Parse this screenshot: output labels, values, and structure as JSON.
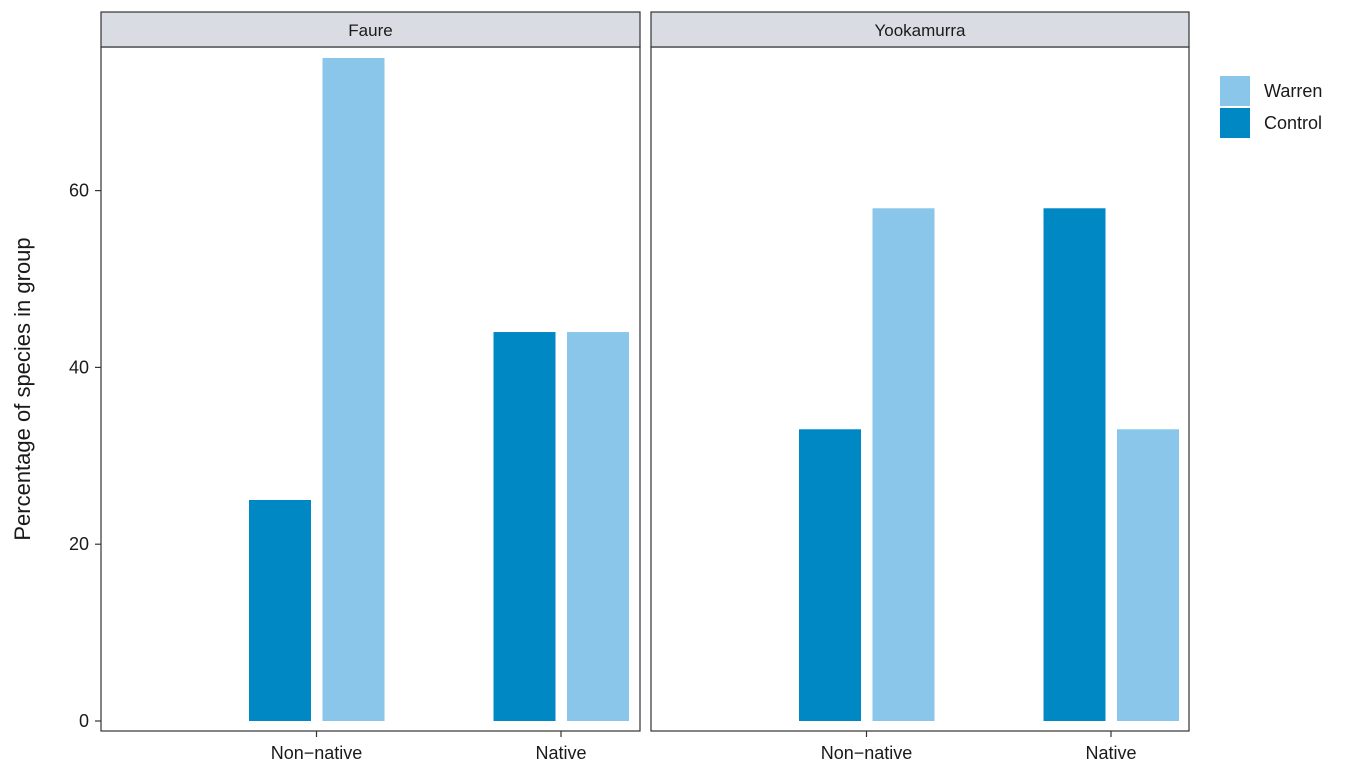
{
  "chart_data": {
    "type": "bar",
    "facets": [
      {
        "title": "Faure",
        "categories": [
          "Non−native",
          "Native"
        ],
        "series": [
          {
            "name": "Control",
            "values": [
              25,
              44
            ]
          },
          {
            "name": "Warren",
            "values": [
              75,
              44
            ]
          }
        ]
      },
      {
        "title": "Yookamurra",
        "categories": [
          "Non−native",
          "Native"
        ],
        "series": [
          {
            "name": "Control",
            "values": [
              33,
              58
            ]
          },
          {
            "name": "Warren",
            "values": [
              58,
              33
            ]
          }
        ]
      }
    ],
    "ylabel": "Percentage of species in group",
    "xlabel": "",
    "ylim": [
      0,
      75
    ],
    "yticks": [
      0,
      20,
      40,
      60
    ],
    "legend": {
      "position": "right",
      "entries": [
        {
          "label": "Warren",
          "color": "#8AC6EA"
        },
        {
          "label": "Control",
          "color": "#0088C4"
        }
      ]
    },
    "colors": {
      "Warren": "#8AC6EA",
      "Control": "#0088C4",
      "strip": "#D9DDE3"
    },
    "grid": false
  }
}
